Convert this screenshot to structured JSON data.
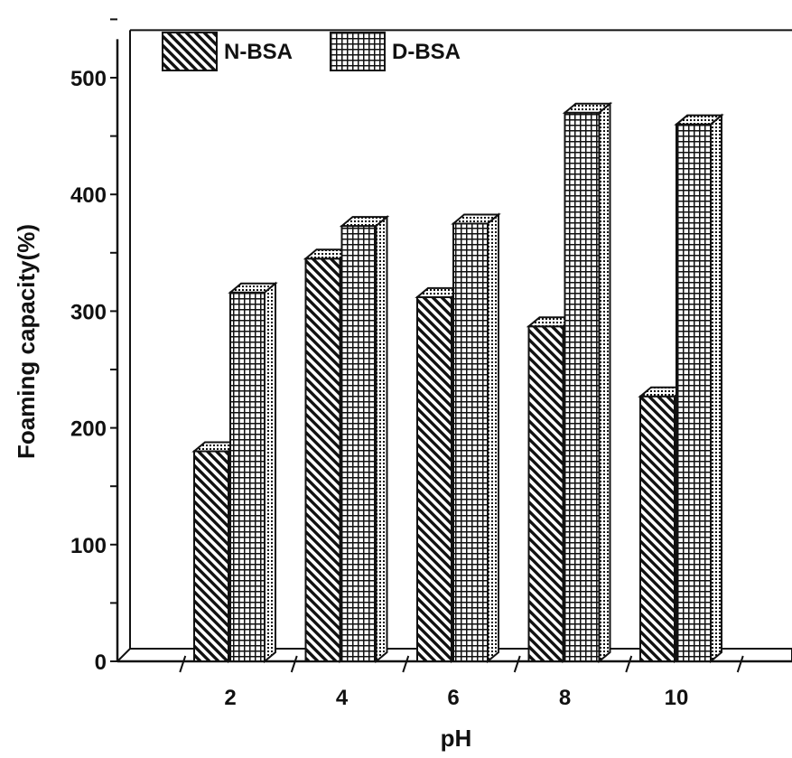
{
  "chart_data": {
    "type": "bar",
    "title": "",
    "xlabel": "pH",
    "ylabel": "Foaming capacity(%)",
    "categories": [
      "2",
      "4",
      "6",
      "8",
      "10"
    ],
    "series": [
      {
        "name": "N-BSA",
        "values": [
          180,
          345,
          312,
          287,
          227
        ]
      },
      {
        "name": "D-BSA",
        "values": [
          316,
          373,
          375,
          470,
          460
        ]
      }
    ],
    "ylim": [
      0,
      550
    ],
    "yticks": [
      0,
      100,
      200,
      300,
      400,
      500
    ],
    "y_minor_tick_step": 50,
    "grid": false,
    "legend_position": "top-left",
    "three_d": true
  }
}
